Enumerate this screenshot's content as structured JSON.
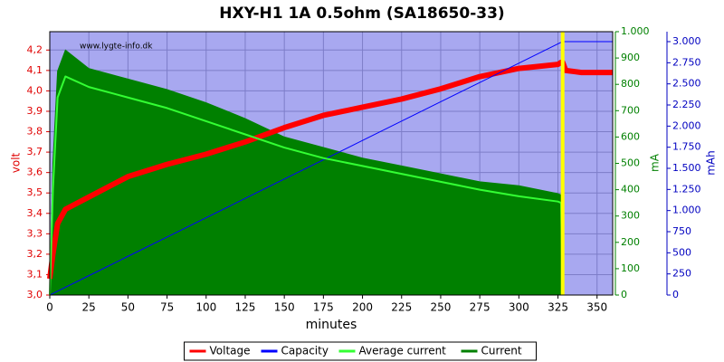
{
  "chart_data": {
    "type": "line",
    "title": "HXY-H1 1A 0.5ohm (SA18650-33)",
    "watermark": "www.lygte-info.dk",
    "x_label": "minutes",
    "y_label": "volt",
    "y2_label": "mA",
    "y3_label": "mAh",
    "background": "#a8a8f0",
    "grid": true,
    "x": [
      0,
      2,
      5,
      10,
      25,
      50,
      75,
      100,
      125,
      150,
      175,
      200,
      225,
      250,
      275,
      300,
      325,
      327,
      328,
      330,
      340,
      360
    ],
    "series": [
      {
        "name": "Voltage",
        "color": "#ff0000",
        "width": 6,
        "axis": "y",
        "values": [
          3.08,
          3.2,
          3.35,
          3.42,
          3.48,
          3.58,
          3.64,
          3.69,
          3.75,
          3.82,
          3.88,
          3.92,
          3.96,
          4.01,
          4.07,
          4.11,
          4.13,
          4.14,
          4.14,
          4.1,
          4.09,
          4.09
        ]
      },
      {
        "name": "Capacity",
        "color": "#0000ff",
        "width": 1,
        "axis": "y3",
        "values": [
          0,
          18,
          46,
          92,
          229,
          458,
          686,
          915,
          1144,
          1373,
          1601,
          1830,
          2059,
          2288,
          2516,
          2745,
          2974,
          2992,
          3000,
          3000,
          3000,
          3000
        ]
      },
      {
        "name": "Average current",
        "color": "#33ff33",
        "width": 2,
        "axis": "y2",
        "values": [
          0,
          400,
          750,
          830,
          790,
          750,
          710,
          660,
          610,
          560,
          520,
          490,
          460,
          430,
          400,
          375,
          355,
          350,
          0,
          null,
          null,
          null
        ]
      },
      {
        "name": "Current",
        "color": "#008000",
        "width": 1,
        "axis": "y2",
        "fill": true,
        "values": [
          0,
          500,
          850,
          930,
          860,
          820,
          780,
          730,
          670,
          600,
          560,
          520,
          490,
          460,
          430,
          415,
          385,
          380,
          0,
          null,
          null,
          null
        ]
      }
    ],
    "vline": 328,
    "vline_color": "#ffff00",
    "xlim": [
      0,
      360
    ],
    "xticks": [
      0,
      25,
      50,
      75,
      100,
      125,
      150,
      175,
      200,
      225,
      250,
      275,
      300,
      325,
      350
    ],
    "ylim": [
      3.0,
      4.29
    ],
    "yticks": [
      {
        "value": 3.0,
        "label": "3,0"
      },
      {
        "value": 3.1,
        "label": "3,1"
      },
      {
        "value": 3.2,
        "label": "3,2"
      },
      {
        "value": 3.3,
        "label": "3,3"
      },
      {
        "value": 3.4,
        "label": "3,4"
      },
      {
        "value": 3.5,
        "label": "3,5"
      },
      {
        "value": 3.6,
        "label": "3,6"
      },
      {
        "value": 3.7,
        "label": "3,7"
      },
      {
        "value": 3.8,
        "label": "3,8"
      },
      {
        "value": 3.9,
        "label": "3,9"
      },
      {
        "value": 4.0,
        "label": "4,0"
      },
      {
        "value": 4.1,
        "label": "4,1"
      },
      {
        "value": 4.2,
        "label": "4,2"
      }
    ],
    "y2lim": [
      0,
      1000
    ],
    "y2ticks": [
      0,
      100,
      200,
      300,
      400,
      500,
      600,
      700,
      800,
      900,
      {
        "value": 1000,
        "label": "1.000"
      }
    ],
    "y3lim": [
      0,
      3118
    ],
    "y3ticks": [
      0,
      250,
      500,
      750,
      {
        "value": 1000,
        "label": "1.000"
      },
      {
        "value": 1250,
        "label": "1.250"
      },
      {
        "value": 1500,
        "label": "1.500"
      },
      {
        "value": 1750,
        "label": "1.750"
      },
      {
        "value": 2000,
        "label": "2.000"
      },
      {
        "value": 2250,
        "label": "2.250"
      },
      {
        "value": 2500,
        "label": "2.500"
      },
      {
        "value": 2750,
        "label": "2.750"
      },
      {
        "value": 3000,
        "label": "3.000"
      }
    ]
  }
}
